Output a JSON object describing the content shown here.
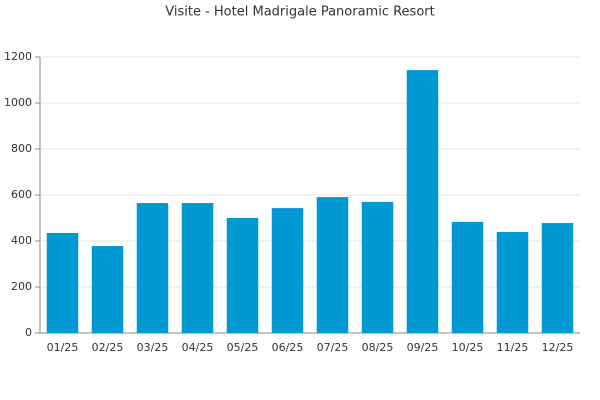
{
  "chart_data": {
    "type": "bar",
    "title": "Visite - Hotel Madrigale Panoramic Resort",
    "categories": [
      "01/25",
      "02/25",
      "03/25",
      "04/25",
      "05/25",
      "06/25",
      "07/25",
      "08/25",
      "09/25",
      "10/25",
      "11/25",
      "12/25"
    ],
    "values": [
      435,
      378,
      565,
      565,
      500,
      543,
      591,
      570,
      1143,
      483,
      439,
      478
    ],
    "color": "#0099d4",
    "ylim": [
      0,
      1200
    ],
    "yticks": [
      0,
      200,
      400,
      600,
      800,
      1000,
      1200
    ],
    "grid": true
  }
}
